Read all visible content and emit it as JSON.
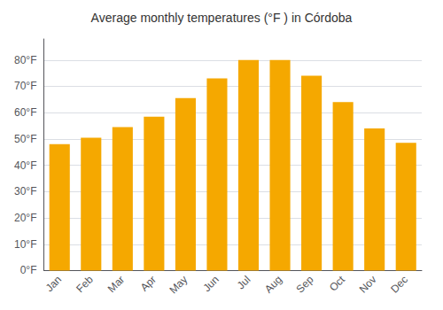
{
  "chart_data": {
    "type": "bar",
    "title": "Average monthly temperatures (°F ) in Córdoba",
    "categories": [
      "Jan",
      "Feb",
      "Mar",
      "Apr",
      "May",
      "Jun",
      "Jul",
      "Aug",
      "Sep",
      "Oct",
      "Nov",
      "Dec"
    ],
    "values": [
      48,
      50.5,
      54.5,
      58.5,
      65.5,
      73,
      80,
      80,
      74,
      64,
      54,
      48.5
    ],
    "color": "#F5A800",
    "ylim": [
      0,
      88
    ],
    "yticks": [
      {
        "value": 0,
        "label": "0°F"
      },
      {
        "value": 10,
        "label": "10°F"
      },
      {
        "value": 20,
        "label": "20°F"
      },
      {
        "value": 30,
        "label": "30°F"
      },
      {
        "value": 40,
        "label": "40°F"
      },
      {
        "value": 50,
        "label": "50°F"
      },
      {
        "value": 60,
        "label": "60°F"
      },
      {
        "value": 70,
        "label": "70°F"
      },
      {
        "value": 80,
        "label": "80°F"
      }
    ],
    "grid": true
  }
}
